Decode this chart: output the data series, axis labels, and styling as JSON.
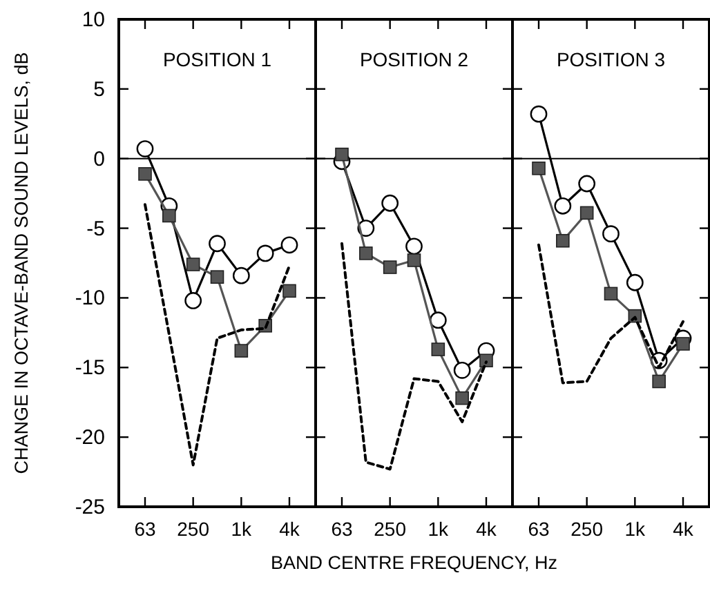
{
  "chart_data": [
    {
      "type": "line",
      "title": "POSITION 1",
      "ylabel": "CHANGE IN OCTAVE-BAND SOUND LEVELS, dB",
      "categories": [
        "63",
        null,
        "250",
        null,
        "1k",
        null,
        "4k"
      ],
      "ylim": [
        -25,
        10
      ],
      "yticks": [
        -25,
        -20,
        -15,
        -10,
        -5,
        0,
        5,
        10
      ],
      "ref_lines": [
        {
          "axis": "y",
          "value": 0,
          "color": "#000000"
        }
      ],
      "series": [
        {
          "color": "#000000",
          "marker": "circle",
          "line_style": "solid",
          "values": [
            0.7,
            -3.4,
            -10.2,
            -6.1,
            -8.4,
            -6.8,
            -6.2
          ]
        },
        {
          "color": "#555555",
          "marker": "square",
          "line_style": "solid",
          "values": [
            -1.1,
            -4.1,
            -7.6,
            -8.5,
            -13.8,
            -12.0,
            -9.5
          ]
        },
        {
          "color": "#000000",
          "marker": "none",
          "line_style": "dashed",
          "values": [
            -3.3,
            -12.6,
            -22.0,
            -12.9,
            -12.3,
            -12.2,
            -7.7
          ]
        }
      ]
    },
    {
      "type": "line",
      "title": "POSITION 2",
      "xlabel": "BAND CENTRE FREQUENCY, Hz",
      "categories": [
        "63",
        null,
        "250",
        null,
        "1k",
        null,
        "4k"
      ],
      "ylim": [
        -25,
        10
      ],
      "yticks": [
        -25,
        -20,
        -15,
        -10,
        -5,
        0,
        5,
        10
      ],
      "tick_labels": "x",
      "ref_lines": [
        {
          "axis": "y",
          "value": 0,
          "color": "#000000"
        }
      ],
      "series": [
        {
          "color": "#000000",
          "marker": "circle",
          "line_style": "solid",
          "values": [
            -0.2,
            -5.0,
            -3.2,
            -6.3,
            -11.6,
            -15.2,
            -13.8
          ]
        },
        {
          "color": "#555555",
          "marker": "square",
          "line_style": "solid",
          "values": [
            0.3,
            -6.8,
            -7.8,
            -7.3,
            -13.7,
            -17.2,
            -14.5
          ]
        },
        {
          "color": "#000000",
          "marker": "none",
          "line_style": "dashed",
          "values": [
            -6.1,
            -21.8,
            -22.3,
            -15.8,
            -16.0,
            -18.9,
            -14.6
          ]
        }
      ]
    },
    {
      "type": "line",
      "title": "POSITION 3",
      "categories": [
        "63",
        null,
        "250",
        null,
        "1k",
        null,
        "4k"
      ],
      "ylim": [
        -25,
        10
      ],
      "yticks": [
        -25,
        -20,
        -15,
        -10,
        -5,
        0,
        5,
        10
      ],
      "tick_labels": "x",
      "ref_lines": [
        {
          "axis": "y",
          "value": 0,
          "color": "#000000"
        }
      ],
      "series": [
        {
          "color": "#000000",
          "marker": "circle",
          "line_style": "solid",
          "values": [
            3.2,
            -3.4,
            -1.8,
            -5.4,
            -8.9,
            -14.5,
            -12.9
          ]
        },
        {
          "color": "#555555",
          "marker": "square",
          "line_style": "solid",
          "values": [
            -0.7,
            -5.9,
            -3.9,
            -9.7,
            -11.3,
            -16.0,
            -13.3
          ]
        },
        {
          "color": "#000000",
          "marker": "none",
          "line_style": "dashed",
          "values": [
            -6.2,
            -16.1,
            -16.0,
            -12.9,
            -11.4,
            -15.0,
            -11.7
          ]
        }
      ]
    }
  ]
}
